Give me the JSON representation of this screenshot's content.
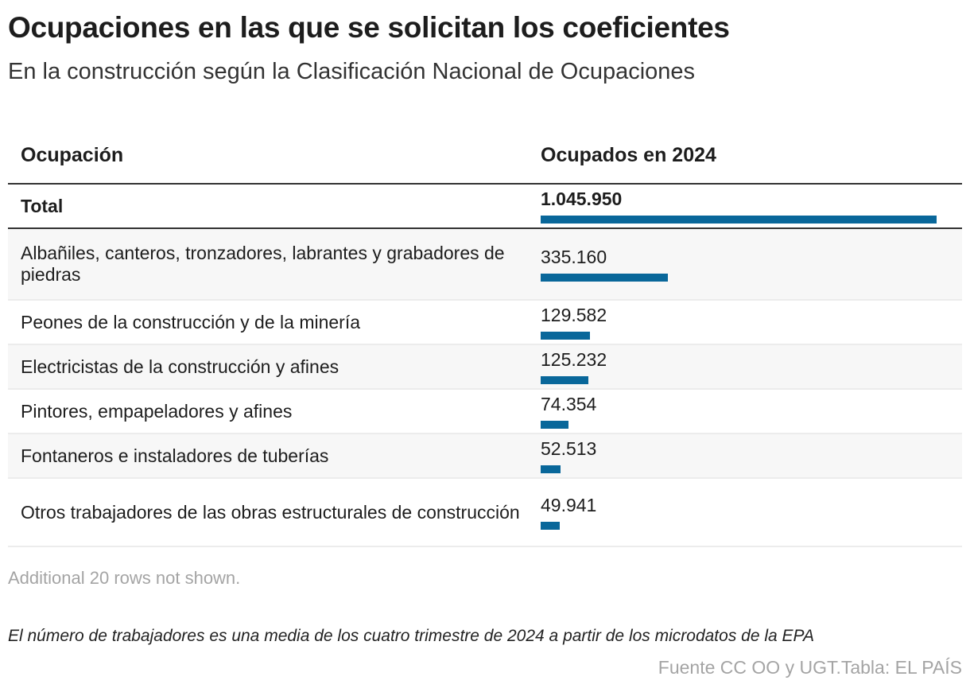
{
  "title": "Ocupaciones en las que se solicitan los coeficientes",
  "subtitle": "En la construcción según la Clasificación Nacional de Ocupaciones",
  "chart_data": {
    "type": "table",
    "columns": [
      "Ocupación",
      "Ocupados en 2024"
    ],
    "bar_color": "#09679a",
    "rows": [
      {
        "label": "Total",
        "value": 1045950,
        "display": "1.045.950",
        "bold": true
      },
      {
        "label": "Albañiles, canteros, tronzadores, labrantes y grabadores de piedras",
        "value": 335160,
        "display": "335.160"
      },
      {
        "label": "Peones de la construcción y de la minería",
        "value": 129582,
        "display": "129.582"
      },
      {
        "label": "Electricistas de la construcción y afines",
        "value": 125232,
        "display": "125.232"
      },
      {
        "label": "Pintores, empapeladores y afines",
        "value": 74354,
        "display": "74.354"
      },
      {
        "label": "Fontaneros e instaladores de tuberías",
        "value": 52513,
        "display": "52.513"
      },
      {
        "label": "Otros trabajadores de las obras estructurales de construcción",
        "value": 49941,
        "display": "49.941"
      }
    ]
  },
  "note": "Additional 20 rows not shown.",
  "description": "El número de trabajadores es una media de los cuatro trimestre de 2024 a partir de los microdatos de la EPA",
  "source": "Fuente CC OO y UGT.Tabla: EL PAÍS"
}
